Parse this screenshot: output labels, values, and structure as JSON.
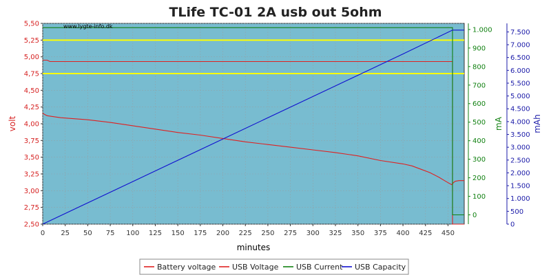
{
  "chart_data": {
    "type": "line",
    "title": "TLife TC-01 2A usb out 5ohm",
    "watermark": "www.lygte-info.dk",
    "xlabel": "minutes",
    "xlim": [
      0,
      468
    ],
    "xticks": [
      0,
      25,
      50,
      75,
      100,
      125,
      150,
      175,
      200,
      225,
      250,
      275,
      300,
      325,
      350,
      375,
      400,
      425,
      450
    ],
    "y_left": {
      "label": "volt",
      "color": "#d62020",
      "lim": [
        2.5,
        5.5
      ],
      "ticks": [
        2.5,
        2.75,
        3.0,
        3.25,
        3.5,
        3.75,
        4.0,
        4.25,
        4.5,
        4.75,
        5.0,
        5.25,
        5.5
      ],
      "tick_labels": [
        "2,50",
        "2,75",
        "3,00",
        "3,25",
        "3,50",
        "3,75",
        "4,00",
        "4,25",
        "4,50",
        "4,75",
        "5,00",
        "5,25",
        "5,50"
      ]
    },
    "y_mid": {
      "label": "mA",
      "color": "#108010",
      "lim": [
        -50,
        1033
      ],
      "ticks": [
        0,
        100,
        200,
        300,
        400,
        500,
        600,
        700,
        800,
        900,
        1000
      ],
      "tick_labels": [
        "0",
        "100",
        "200",
        "300",
        "400",
        "500",
        "600",
        "700",
        "800",
        "900",
        "1.000"
      ]
    },
    "y_right": {
      "label": "mAh",
      "color": "#1a1aa8",
      "lim": [
        0,
        7833
      ],
      "ticks": [
        0,
        500,
        1000,
        1500,
        2000,
        2500,
        3000,
        3500,
        4000,
        4500,
        5000,
        5500,
        6000,
        6500,
        7000,
        7500
      ],
      "tick_labels": [
        "0",
        "500",
        "1.000",
        "1.500",
        "2.000",
        "2.500",
        "3.000",
        "3.500",
        "4.000",
        "4.500",
        "5.000",
        "5.500",
        "6.000",
        "6.500",
        "7.000",
        "7.500"
      ]
    },
    "reference_lines": {
      "color": "#ffff00",
      "values": [
        4.75,
        5.25
      ]
    },
    "grid": true,
    "legend_position": "bottom",
    "plot_background": "#78bcd0",
    "series": [
      {
        "name": "Battery voltage",
        "color": "#e02020",
        "axis": "left",
        "x": [
          0,
          2,
          5,
          10,
          20,
          30,
          50,
          75,
          100,
          125,
          150,
          175,
          200,
          225,
          250,
          275,
          300,
          325,
          350,
          375,
          400,
          410,
          420,
          430,
          440,
          445,
          450,
          454,
          456,
          458,
          462,
          468
        ],
        "y": [
          4.16,
          4.14,
          4.12,
          4.11,
          4.09,
          4.08,
          4.06,
          4.02,
          3.97,
          3.92,
          3.87,
          3.83,
          3.78,
          3.73,
          3.69,
          3.65,
          3.61,
          3.57,
          3.52,
          3.45,
          3.4,
          3.37,
          3.32,
          3.27,
          3.2,
          3.16,
          3.12,
          3.09,
          3.12,
          3.14,
          3.15,
          3.15
        ]
      },
      {
        "name": "USB Voltage",
        "color": "#e02020",
        "axis": "left",
        "x": [
          0,
          5,
          8,
          100,
          200,
          300,
          400,
          455,
          455,
          468
        ],
        "y": [
          4.95,
          4.95,
          4.93,
          4.93,
          4.93,
          4.93,
          4.93,
          4.93,
          2.5,
          2.5
        ]
      },
      {
        "name": "USB Current",
        "color": "#108010",
        "axis": "mid",
        "x": [
          0,
          100,
          200,
          300,
          400,
          455,
          455,
          468
        ],
        "y": [
          1010,
          1010,
          1010,
          1010,
          1010,
          1010,
          0,
          0
        ]
      },
      {
        "name": "USB Capacity",
        "color": "#1010d0",
        "axis": "right",
        "x": [
          0,
          100,
          200,
          300,
          400,
          455,
          468
        ],
        "y": [
          0,
          1660,
          3320,
          4980,
          6640,
          7570,
          7570
        ]
      }
    ]
  }
}
